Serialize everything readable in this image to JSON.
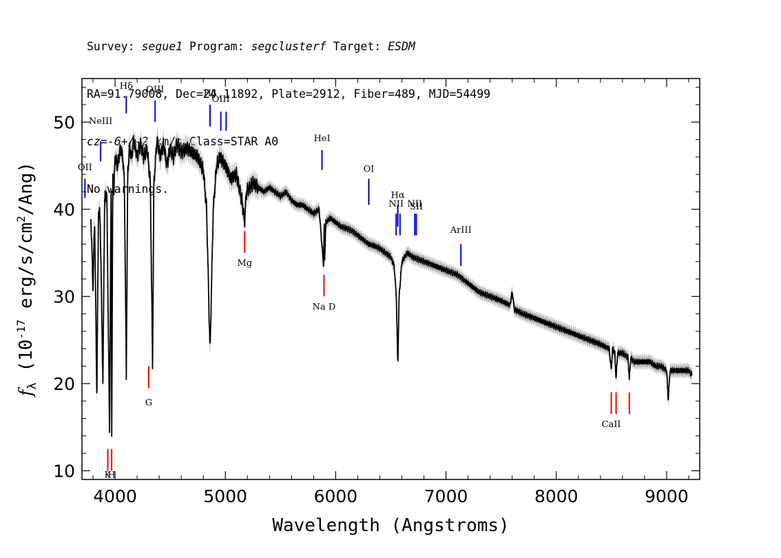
{
  "header": {
    "survey_label": "Survey: ",
    "survey": "segue1",
    "program_label": " Program: ",
    "program": "segclusterf",
    "target_label": " Target: ",
    "target": "ESDM",
    "line2": "RA=91.79008, Dec=24.11892, Plate=2912, Fiber=489, MJD=54499",
    "cz_label": "cz=",
    "cz_value": "-6+/-2",
    "cz_unit": " km/s Class=STAR A0",
    "line4": "No warnings."
  },
  "chart_data": {
    "type": "line",
    "xlabel": "Wavelength (Angstroms)",
    "ylabel": "f_λ (10^-17 erg/s/cm²/Ang)",
    "ylabel_parts": {
      "f": "f",
      "sub": "λ",
      "pre": "(10",
      "sup": "-17",
      "mid": " erg/s/cm",
      "sup2": "2",
      "post": "/Ang)"
    },
    "xlim": [
      3700,
      9300
    ],
    "ylim": [
      9,
      55
    ],
    "xticks": [
      4000,
      5000,
      6000,
      7000,
      8000,
      9000
    ],
    "yticks": [
      10,
      20,
      30,
      40,
      50
    ],
    "colors": {
      "spectrum": "#000000",
      "error_band": "#b4b4b4",
      "emission": "#0000ff",
      "absorption": "#ff0000",
      "sky": "#000080"
    },
    "spectrum_anchor_points": [
      [
        3780,
        39.5
      ],
      [
        3800,
        31
      ],
      [
        3815,
        39
      ],
      [
        3835,
        18.5
      ],
      [
        3850,
        40
      ],
      [
        3865,
        39
      ],
      [
        3890,
        20
      ],
      [
        3905,
        41
      ],
      [
        3925,
        42
      ],
      [
        3950,
        14.5
      ],
      [
        3965,
        44
      ],
      [
        3970,
        14.5
      ],
      [
        3980,
        44
      ],
      [
        3990,
        42
      ],
      [
        4000,
        46
      ],
      [
        4020,
        45
      ],
      [
        4050,
        47
      ],
      [
        4070,
        46
      ],
      [
        4085,
        43
      ],
      [
        4102,
        21
      ],
      [
        4115,
        44
      ],
      [
        4130,
        47
      ],
      [
        4150,
        46
      ],
      [
        4170,
        48
      ],
      [
        4200,
        46
      ],
      [
        4230,
        47.5
      ],
      [
        4260,
        46
      ],
      [
        4290,
        47
      ],
      [
        4320,
        43
      ],
      [
        4340,
        22
      ],
      [
        4352,
        43
      ],
      [
        4380,
        48
      ],
      [
        4410,
        46
      ],
      [
        4440,
        47.5
      ],
      [
        4470,
        45
      ],
      [
        4500,
        47
      ],
      [
        4530,
        46
      ],
      [
        4560,
        47.5
      ],
      [
        4600,
        46.5
      ],
      [
        4650,
        47
      ],
      [
        4700,
        46.5
      ],
      [
        4750,
        46
      ],
      [
        4800,
        44.5
      ],
      [
        4830,
        40
      ],
      [
        4861,
        23.5
      ],
      [
        4890,
        40
      ],
      [
        4920,
        45
      ],
      [
        4950,
        46
      ],
      [
        5000,
        45
      ],
      [
        5050,
        43.5
      ],
      [
        5100,
        44
      ],
      [
        5150,
        41
      ],
      [
        5175,
        38.5
      ],
      [
        5190,
        42
      ],
      [
        5250,
        43
      ],
      [
        5300,
        42.5
      ],
      [
        5350,
        42
      ],
      [
        5400,
        42.5
      ],
      [
        5450,
        42
      ],
      [
        5500,
        41.5
      ],
      [
        5550,
        42
      ],
      [
        5600,
        41
      ],
      [
        5650,
        40.5
      ],
      [
        5700,
        40.5
      ],
      [
        5750,
        40
      ],
      [
        5800,
        39.5
      ],
      [
        5850,
        40
      ],
      [
        5890,
        33.5
      ],
      [
        5896,
        38
      ],
      [
        5900,
        34
      ],
      [
        5910,
        38.5
      ],
      [
        5950,
        39
      ],
      [
        6000,
        38.5
      ],
      [
        6050,
        38
      ],
      [
        6100,
        37.8
      ],
      [
        6150,
        37.5
      ],
      [
        6200,
        37
      ],
      [
        6250,
        36.5
      ],
      [
        6300,
        36
      ],
      [
        6350,
        35.8
      ],
      [
        6400,
        35.5
      ],
      [
        6450,
        35
      ],
      [
        6500,
        34.5
      ],
      [
        6530,
        33.5
      ],
      [
        6550,
        30
      ],
      [
        6563,
        22
      ],
      [
        6575,
        30
      ],
      [
        6600,
        34
      ],
      [
        6650,
        35
      ],
      [
        6700,
        34.5
      ],
      [
        6800,
        34
      ],
      [
        6900,
        33.5
      ],
      [
        7000,
        33
      ],
      [
        7100,
        32.5
      ],
      [
        7200,
        31.5
      ],
      [
        7300,
        30.5
      ],
      [
        7400,
        30
      ],
      [
        7500,
        29.5
      ],
      [
        7580,
        29
      ],
      [
        7600,
        30.5
      ],
      [
        7620,
        28.5
      ],
      [
        7700,
        28
      ],
      [
        7800,
        27.5
      ],
      [
        7900,
        27
      ],
      [
        8000,
        26.5
      ],
      [
        8100,
        26
      ],
      [
        8200,
        25.5
      ],
      [
        8300,
        25
      ],
      [
        8400,
        24.5
      ],
      [
        8480,
        24
      ],
      [
        8498,
        21.5
      ],
      [
        8510,
        24
      ],
      [
        8530,
        23.5
      ],
      [
        8542,
        20.5
      ],
      [
        8555,
        23.5
      ],
      [
        8600,
        23.5
      ],
      [
        8650,
        23
      ],
      [
        8662,
        20.5
      ],
      [
        8675,
        23
      ],
      [
        8700,
        22.5
      ],
      [
        8750,
        22.5
      ],
      [
        8800,
        22.5
      ],
      [
        8850,
        22.5
      ],
      [
        8900,
        22
      ],
      [
        8950,
        22
      ],
      [
        9000,
        21.5
      ],
      [
        9015,
        18
      ],
      [
        9030,
        21.5
      ],
      [
        9100,
        21.5
      ],
      [
        9150,
        21.5
      ],
      [
        9200,
        21.5
      ],
      [
        9230,
        21
      ]
    ],
    "annotations": [
      {
        "label": "NeIII",
        "x": 3869,
        "y_label": 49.8,
        "y1": 45.5,
        "y2": 47.8,
        "color": "emission"
      },
      {
        "label": "OII",
        "x": 3727,
        "y_label": 44.5,
        "y1": 41.3,
        "y2": 43.5,
        "color": "emission"
      },
      {
        "label": "Hδ",
        "x": 4102,
        "y_label": 53.8,
        "y1": 51,
        "y2": 53,
        "color": "sky"
      },
      {
        "label": "OIII",
        "x": 4363,
        "y_label": 53.4,
        "y1": 50,
        "y2": 52.5,
        "color": "emission"
      },
      {
        "label": "Hβ",
        "x": 4861,
        "y_label": 53,
        "y1": 49.5,
        "y2": 52,
        "color": "emission"
      },
      {
        "label": "OIII",
        "x": 4959,
        "y_label": 52.3,
        "y1": 49,
        "y2": 51.2,
        "color": "emission"
      },
      {
        "label": "OIII",
        "x": 5007,
        "y_label": "",
        "y1": 49,
        "y2": 51.2,
        "color": "emission"
      },
      {
        "label": "HeI",
        "x": 5876,
        "y_label": 47.8,
        "y1": 44.5,
        "y2": 46.8,
        "color": "emission"
      },
      {
        "label": "OI",
        "x": 6300,
        "y_label": 44.3,
        "y1": 40.5,
        "y2": 43.5,
        "color": "sky"
      },
      {
        "label": "NII",
        "x": 6548,
        "y_label": 40.3,
        "y1": 37,
        "y2": 39.5,
        "color": "emission"
      },
      {
        "label": "Hα",
        "x": 6563,
        "y_label": 41.3,
        "y1": 38,
        "y2": 40.5,
        "color": "sky"
      },
      {
        "label": "NII",
        "x": 6583,
        "y_label": "",
        "y1": 37,
        "y2": 39.5,
        "color": "emission"
      },
      {
        "label": "NII",
        "x": 6717,
        "y_label": 40.3,
        "y1": 37,
        "y2": 39.5,
        "color": "emission"
      },
      {
        "label": "SII",
        "x": 6731,
        "y_label": 40,
        "y1": 37,
        "y2": 39.5,
        "color": "emission"
      },
      {
        "label": "ArIII",
        "x": 7135,
        "y_label": 37.3,
        "y1": 33.5,
        "y2": 36,
        "color": "emission"
      },
      {
        "label": "K",
        "x": 3934,
        "y_label": 9.2,
        "y1": 10,
        "y2": 12.5,
        "color": "absorption"
      },
      {
        "label": "H",
        "x": 3969,
        "y_label": 9.2,
        "y1": 10,
        "y2": 12.5,
        "color": "absorption"
      },
      {
        "label": "G",
        "x": 4305,
        "y_label": 17.5,
        "y1": 19.5,
        "y2": 22,
        "color": "absorption"
      },
      {
        "label": "Mg",
        "x": 5175,
        "y_label": 33.5,
        "y1": 35,
        "y2": 37.5,
        "color": "absorption"
      },
      {
        "label": "Na D",
        "x": 5894,
        "y_label": 28.5,
        "y1": 30,
        "y2": 32.5,
        "color": "absorption"
      },
      {
        "label": "CaII",
        "x": 8498,
        "y_label": 15,
        "y1": 16.5,
        "y2": 19,
        "color": "absorption"
      },
      {
        "label": "",
        "x": 8542,
        "y_label": "",
        "y1": 16.5,
        "y2": 19,
        "color": "absorption"
      },
      {
        "label": "",
        "x": 8662,
        "y_label": "",
        "y1": 16.5,
        "y2": 19,
        "color": "absorption"
      }
    ]
  }
}
